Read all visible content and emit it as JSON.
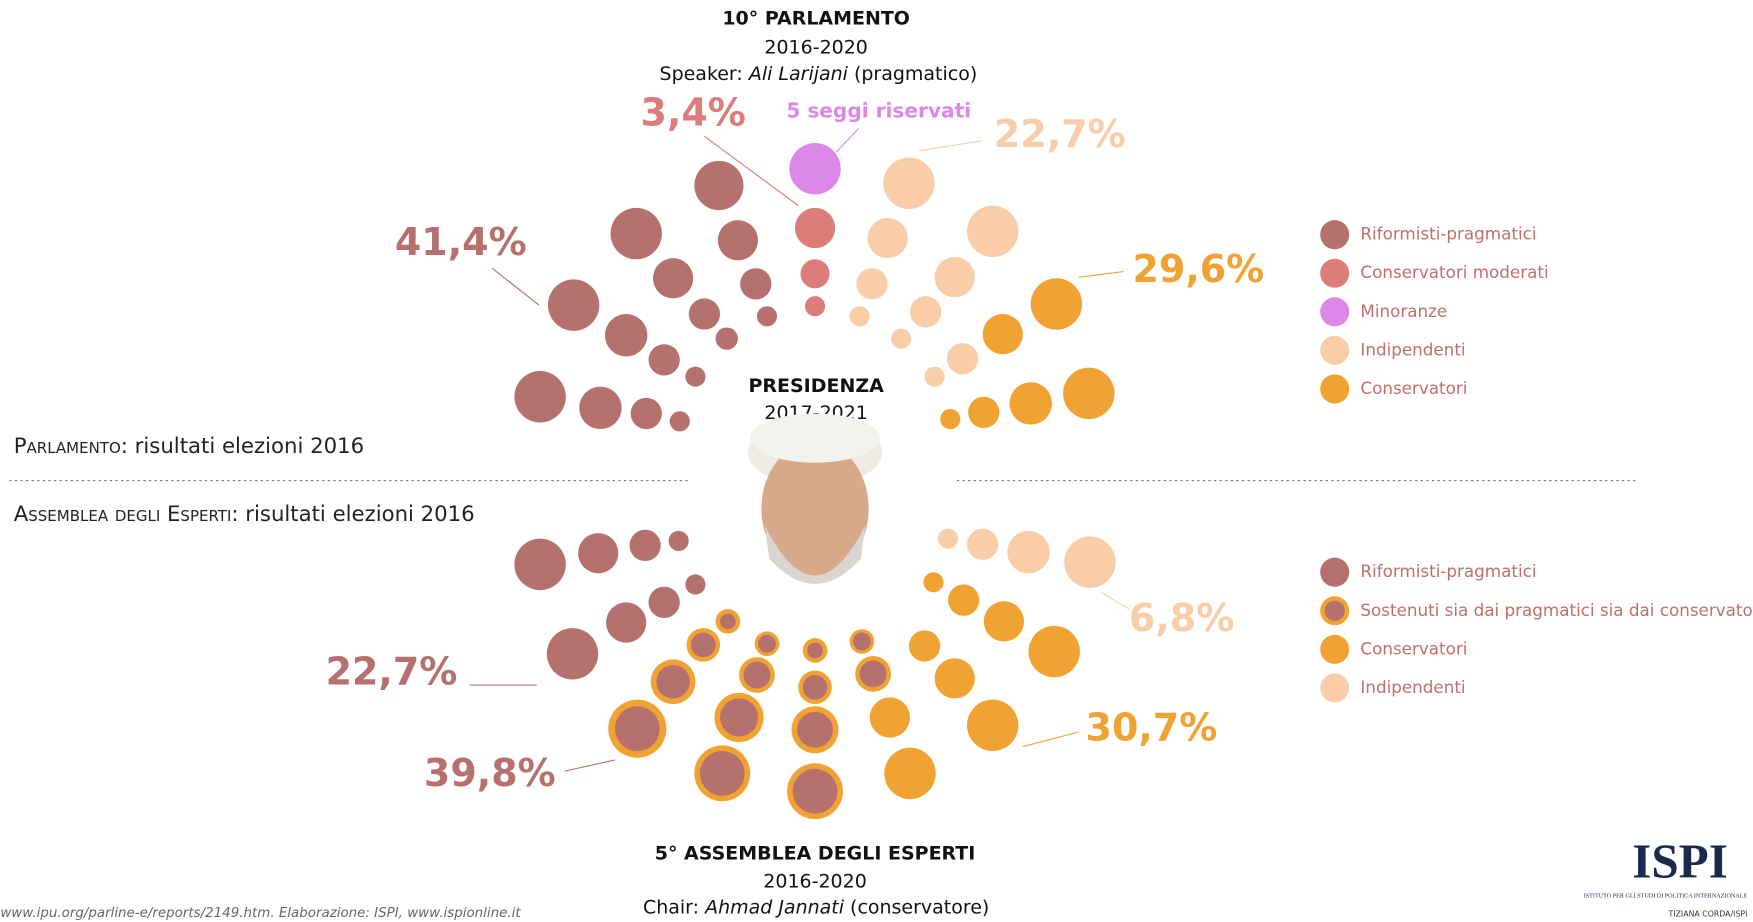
{
  "parliament": {
    "title": "10° PARLAMENTO",
    "years": "2016-2020",
    "leader_prefix": "Speaker:",
    "leader_name": "Ali Larijani",
    "leader_note": "(pragmatico)",
    "labels": {
      "moderati": "3,4%",
      "minoranze": "5 seggi riservati",
      "indipendenti": "22,7%",
      "riformisti": "41,4%",
      "conservatori": "29,6%"
    },
    "legend": [
      {
        "name": "Riformisti-pragmatici",
        "color": "#b5716e"
      },
      {
        "name": "Conservatori moderati",
        "color": "#dc7d79"
      },
      {
        "name": "Minoranze",
        "color": "#dd88e6"
      },
      {
        "name": "Indipendenti",
        "color": "#f8cda8"
      },
      {
        "name": "Conservatori",
        "color": "#f0a232"
      }
    ]
  },
  "presidency": {
    "title": "PRESIDENZA",
    "years": "2017-2021"
  },
  "sections": {
    "parliament_caps": "Parlamento",
    "parliament_rest": ": risultati elezioni 2016",
    "assembly_caps": "Assemblea degli Esperti",
    "assembly_rest": ": risultati elezioni 2016"
  },
  "assembly": {
    "title": "5° ASSEMBLEA DEGLI ESPERTI",
    "years": "2016-2020",
    "leader_prefix": "Chair:",
    "leader_name": "Ahmad Jannati",
    "leader_note": "(conservatore)",
    "labels": {
      "riformisti": "22,7%",
      "sostenuti": "39,8%",
      "conservatori": "30,7%",
      "indipendenti": "6,8%"
    },
    "legend": [
      {
        "name": "Riformisti-pragmatici",
        "color": "#b5716e"
      },
      {
        "name": "Sostenuti sia dai pragmatici sia dai conservatori",
        "color": "#f0a232"
      },
      {
        "name": "Conservatori",
        "color": "#f0a232"
      },
      {
        "name": "Indipendenti",
        "color": "#f8cda8"
      }
    ]
  },
  "source": "www.ipu.org/parline-e/reports/2149.htm. Elaborazione: ISPI, www.ispionline.it",
  "logo": {
    "name": "ISPI",
    "full": "ISTITUTO PER GLI STUDI DI POLITICA INTERNAZIONALE",
    "credit": "TIZIANA CORDA/ISPI"
  }
}
